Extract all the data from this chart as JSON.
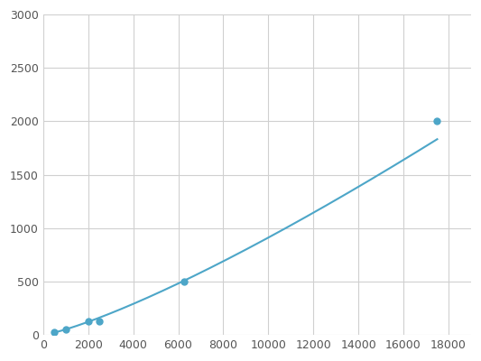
{
  "x": [
    500,
    1000,
    2000,
    2500,
    6250,
    17500
  ],
  "y": [
    24,
    50,
    130,
    130,
    500,
    2000
  ],
  "line_color": "#4da6c8",
  "marker_color": "#4da6c8",
  "marker_size": 5,
  "xlim": [
    0,
    19000
  ],
  "ylim": [
    0,
    3000
  ],
  "xticks": [
    0,
    2000,
    4000,
    6000,
    8000,
    10000,
    12000,
    14000,
    16000,
    18000
  ],
  "yticks": [
    0,
    500,
    1000,
    1500,
    2000,
    2500,
    3000
  ],
  "grid_color": "#d0d0d0",
  "background_color": "#ffffff",
  "tick_labelsize": 9,
  "figsize": [
    5.33,
    4.0
  ],
  "dpi": 100
}
